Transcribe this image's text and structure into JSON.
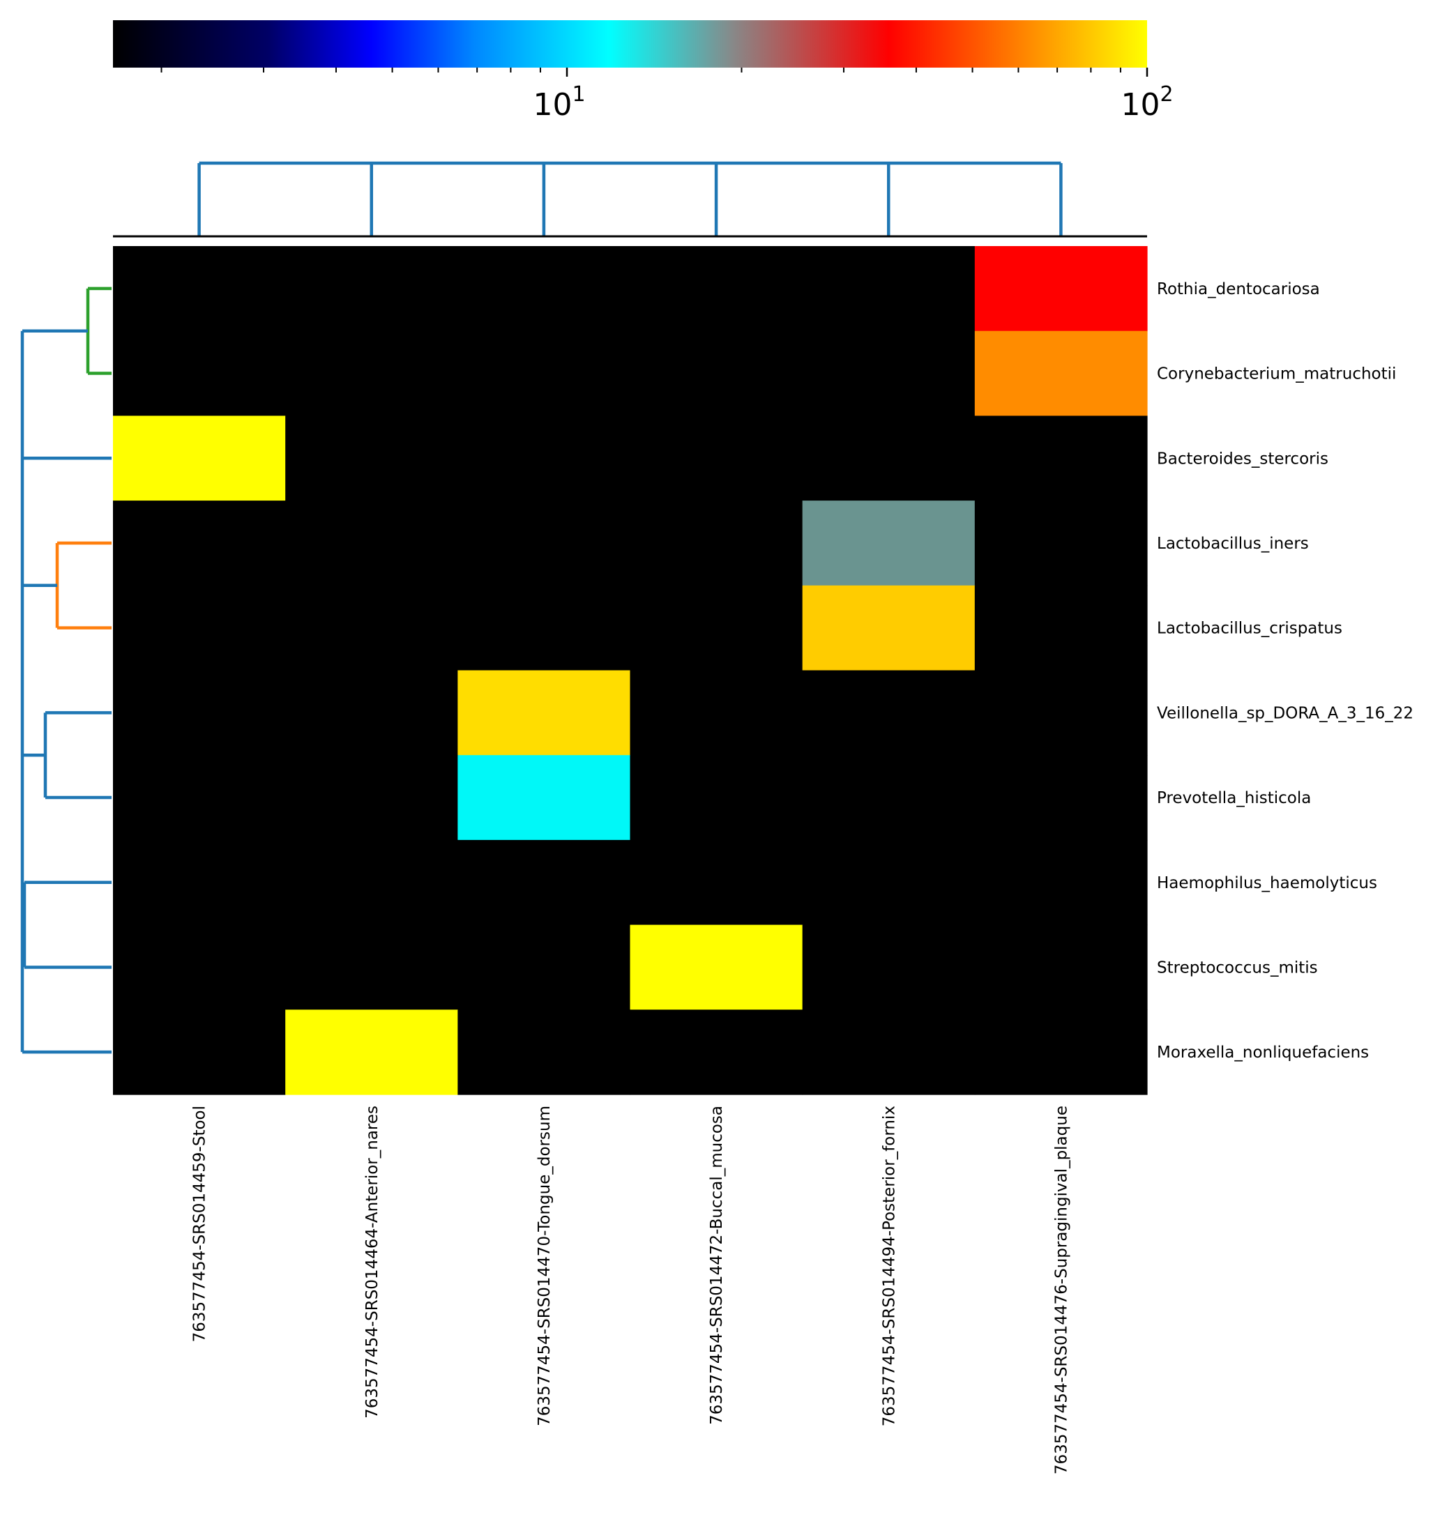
{
  "chart_data": {
    "type": "heatmap",
    "title": "",
    "xlabel": "",
    "ylabel": "",
    "scale": "log",
    "colorbar": {
      "position": "top",
      "range": [
        1.65,
        100
      ],
      "major_ticks": [
        {
          "value": 10,
          "base": "10",
          "exp": "1"
        },
        {
          "value": 100,
          "base": "10",
          "exp": "2"
        }
      ],
      "minor_ticks": [
        2,
        3,
        4,
        5,
        6,
        7,
        8,
        9,
        20,
        30,
        40,
        50,
        60,
        70,
        80,
        90
      ],
      "colormap": [
        {
          "stop": 0.0,
          "color": "#000000"
        },
        {
          "stop": 0.15,
          "color": "#000066"
        },
        {
          "stop": 0.25,
          "color": "#0000ff"
        },
        {
          "stop": 0.35,
          "color": "#0088ff"
        },
        {
          "stop": 0.48,
          "color": "#00ffff"
        },
        {
          "stop": 0.6,
          "color": "#888888"
        },
        {
          "stop": 0.75,
          "color": "#ff0000"
        },
        {
          "stop": 1.0,
          "color": "#ffff00"
        }
      ]
    },
    "columns": [
      "763577454-SRS014459-Stool",
      "763577454-SRS014464-Anterior_nares",
      "763577454-SRS014470-Tongue_dorsum",
      "763577454-SRS014472-Buccal_mucosa",
      "763577454-SRS014494-Posterior_fornix",
      "763577454-SRS014476-Supragingival_plaque"
    ],
    "rows": [
      "Rothia_dentocariosa",
      "Corynebacterium_matruchotii",
      "Bacteroides_stercoris",
      "Lactobacillus_iners",
      "Lactobacillus_crispatus",
      "Veillonella_sp_DORA_A_3_16_22",
      "Prevotella_histicola",
      "Haemophilus_haemolyticus",
      "Streptococcus_mitis",
      "Moraxella_nonliquefaciens"
    ],
    "values": [
      [
        0,
        0,
        0,
        0,
        0,
        36
      ],
      [
        0,
        0,
        0,
        0,
        0,
        57
      ],
      [
        100,
        0,
        0,
        0,
        0,
        0
      ],
      [
        0,
        0,
        0,
        0,
        18,
        0
      ],
      [
        0,
        0,
        0,
        0,
        80,
        0
      ],
      [
        0,
        0,
        85,
        0,
        0,
        0
      ],
      [
        0,
        0,
        11,
        0,
        0,
        0
      ],
      [
        0,
        0,
        0,
        0,
        0,
        0
      ],
      [
        0,
        0,
        0,
        100,
        0,
        0
      ],
      [
        0,
        100,
        0,
        0,
        0,
        0
      ]
    ],
    "cell_colors": [
      [
        "#000000",
        "#000000",
        "#000000",
        "#000000",
        "#000000",
        "#ff0000"
      ],
      [
        "#000000",
        "#000000",
        "#000000",
        "#000000",
        "#000000",
        "#ff8c00"
      ],
      [
        "#ffff00",
        "#000000",
        "#000000",
        "#000000",
        "#000000",
        "#000000"
      ],
      [
        "#000000",
        "#000000",
        "#000000",
        "#000000",
        "#6a9490",
        "#000000"
      ],
      [
        "#000000",
        "#000000",
        "#000000",
        "#000000",
        "#ffcc00",
        "#000000"
      ],
      [
        "#000000",
        "#000000",
        "#ffdd00",
        "#000000",
        "#000000",
        "#000000"
      ],
      [
        "#000000",
        "#000000",
        "#00f8f8",
        "#000000",
        "#000000",
        "#000000"
      ],
      [
        "#000000",
        "#000000",
        "#000000",
        "#000000",
        "#000000",
        "#000000"
      ],
      [
        "#000000",
        "#000000",
        "#000000",
        "#ffff00",
        "#000000",
        "#000000"
      ],
      [
        "#000000",
        "#ffff00",
        "#000000",
        "#000000",
        "#000000",
        "#000000"
      ]
    ],
    "row_dendrogram": {
      "colors": {
        "green": "#2ca02c",
        "orange": "#ff7f0e",
        "blue": "#1f77b4"
      },
      "clusters": [
        {
          "rows": [
            0,
            1
          ],
          "color": "green"
        },
        {
          "rows": [
            3,
            4
          ],
          "color": "orange"
        }
      ]
    },
    "column_dendrogram": {
      "color": "#1f77b4"
    }
  }
}
